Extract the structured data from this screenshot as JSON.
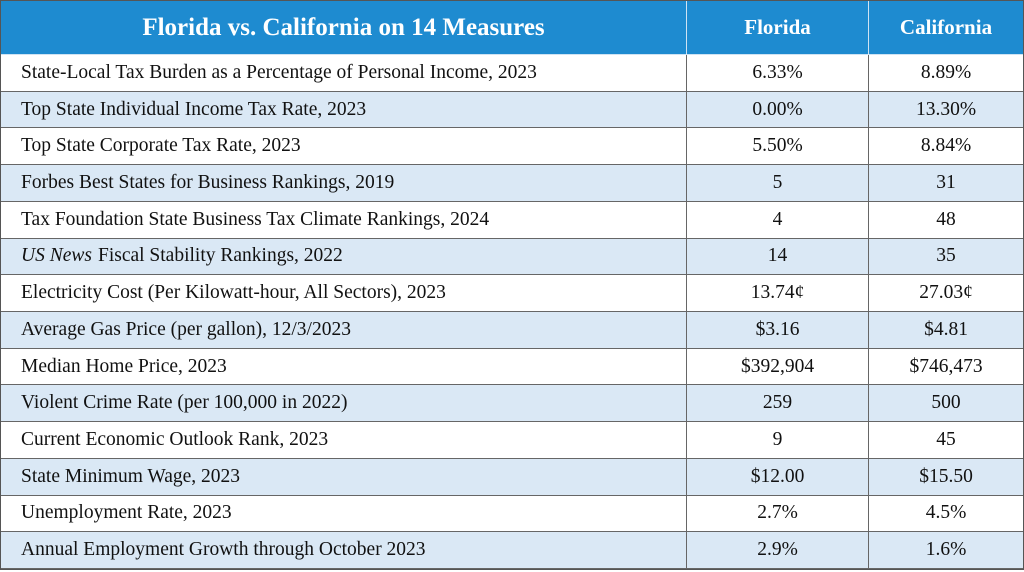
{
  "table": {
    "header": [
      "Florida vs. California on 14 Measures",
      "Florida",
      "California"
    ],
    "rows": [
      [
        "State-Local Tax Burden as a Percentage of Personal Income, 2023",
        "6.33%",
        "8.89%"
      ],
      [
        "Top State Individual Income Tax Rate, 2023",
        "0.00%",
        "13.30%"
      ],
      [
        "Top State Corporate Tax Rate, 2023",
        "5.50%",
        "8.84%"
      ],
      [
        "Forbes Best States for Business Rankings, 2019",
        "5",
        "31"
      ],
      [
        "Tax Foundation State Business Tax Climate Rankings, 2024",
        "4",
        "48"
      ],
      [
        [
          "US News",
          "Fiscal Stability Rankings, 2022"
        ],
        "14",
        "35"
      ],
      [
        "Electricity Cost (Per Kilowatt-hour, All Sectors), 2023",
        "13.74¢",
        "27.03¢"
      ],
      [
        "Average Gas Price (per gallon), 12/3/2023",
        "$3.16",
        "$4.81"
      ],
      [
        "Median Home Price, 2023",
        "$392,904",
        "$746,473"
      ],
      [
        "Violent Crime Rate (per 100,000 in 2022)",
        "259",
        "500"
      ],
      [
        "Current Economic Outlook Rank, 2023",
        "9",
        "45"
      ],
      [
        "State Minimum Wage, 2023",
        "$12.00",
        "$15.50"
      ],
      [
        "Unemployment Rate, 2023",
        "2.7%",
        "4.5%"
      ],
      [
        "Annual Employment Growth through October 2023",
        "2.9%",
        "1.6%"
      ]
    ]
  }
}
